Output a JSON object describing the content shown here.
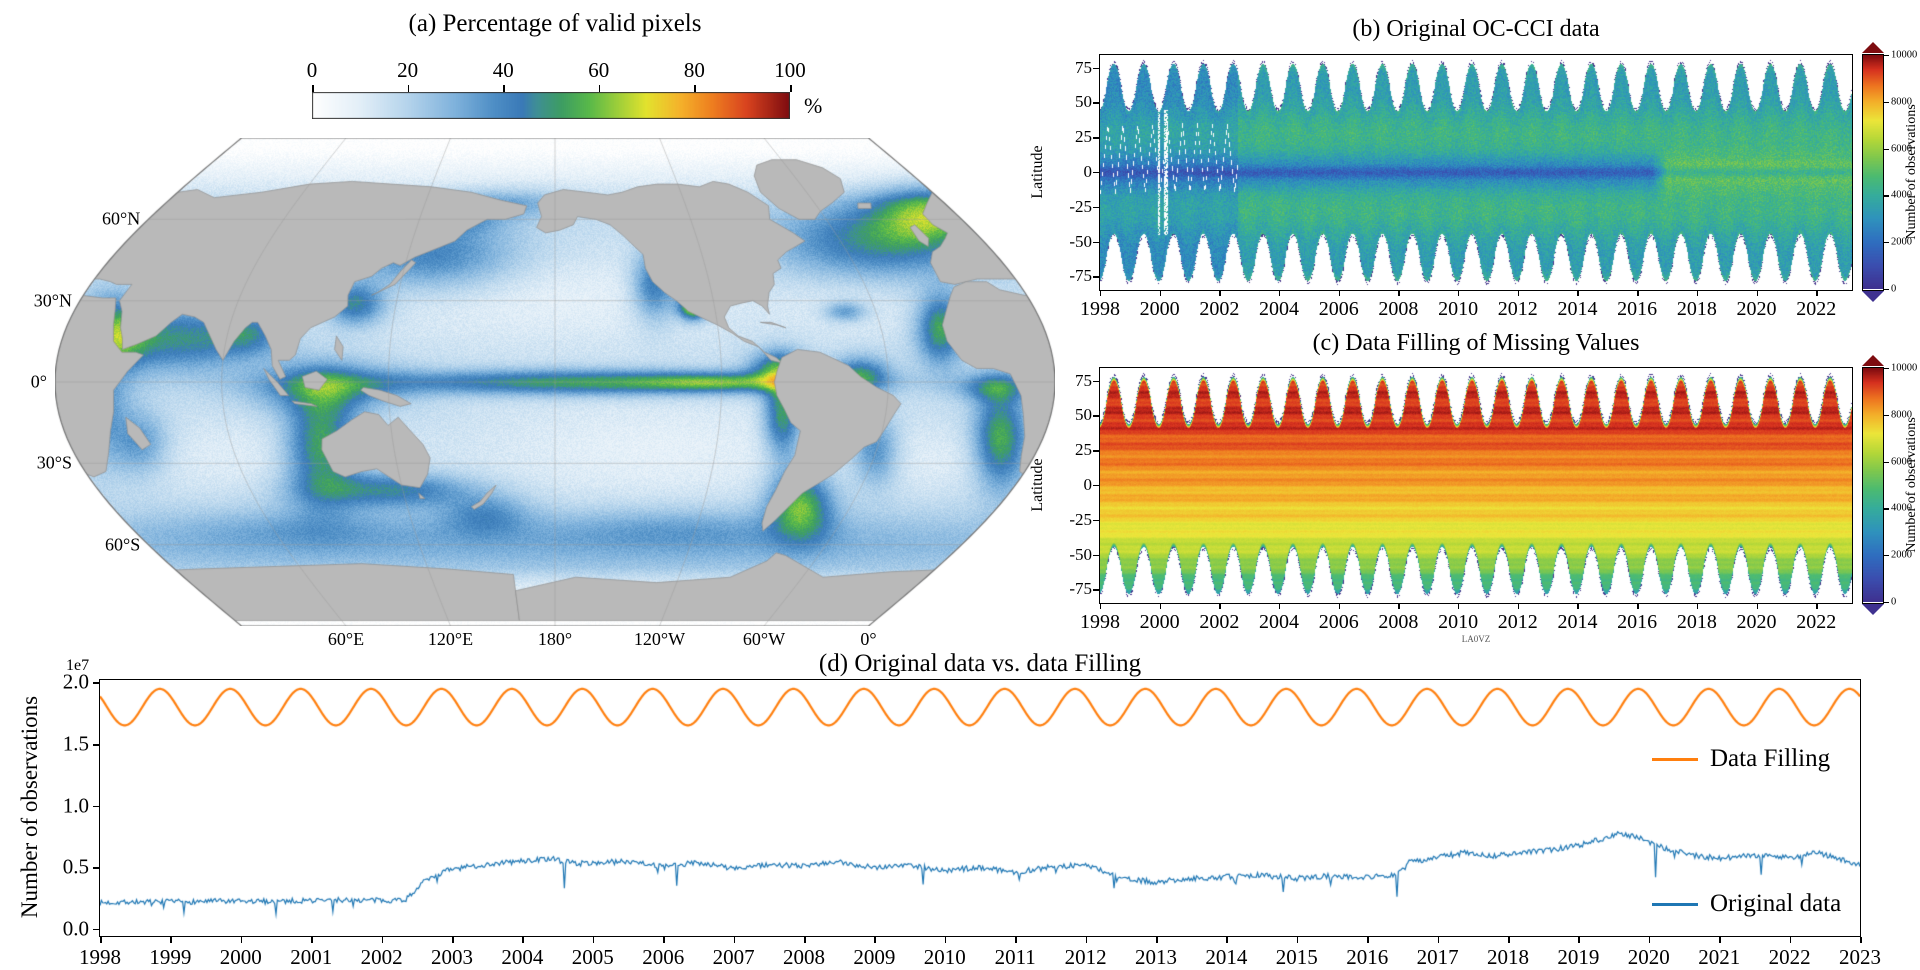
{
  "chart_data": [
    {
      "type": "heatmap",
      "panel": "a",
      "title": "(a) Percentage of valid pixels",
      "colorbar": {
        "unit": "%",
        "min": 0,
        "max": 100,
        "ticks": [
          0,
          20,
          40,
          60,
          80,
          100
        ],
        "orientation": "horizontal"
      },
      "projection": "robinson",
      "central_longitude": 200,
      "lat_labels": [
        "60°N",
        "30°N",
        "0°",
        "30°S",
        "60°S"
      ],
      "lat_values": [
        60,
        30,
        0,
        -30,
        -60
      ],
      "lon_labels": [
        "60°E",
        "120°E",
        "180°",
        "120°W",
        "60°W",
        "0°"
      ],
      "lon_center_offsets": [
        -120,
        -60,
        0,
        60,
        120,
        180
      ],
      "land_color": "#b9b9b9",
      "land_edge_color": "#8f8f8f",
      "colormap_stops": [
        [
          0,
          "#ffffff"
        ],
        [
          0.1,
          "#e3eff8"
        ],
        [
          0.2,
          "#b5d4ec"
        ],
        [
          0.3,
          "#7fb2dc"
        ],
        [
          0.38,
          "#4f8fc6"
        ],
        [
          0.44,
          "#3a7ab8"
        ],
        [
          0.47,
          "#3f8f96"
        ],
        [
          0.52,
          "#3d9d64"
        ],
        [
          0.58,
          "#59b94a"
        ],
        [
          0.64,
          "#9ecf3a"
        ],
        [
          0.7,
          "#e3e32e"
        ],
        [
          0.77,
          "#f5b32b"
        ],
        [
          0.84,
          "#ee7d1f"
        ],
        [
          0.91,
          "#d9441f"
        ],
        [
          1,
          "#7e0c10"
        ]
      ],
      "base_valid_pct": 17,
      "ocean_features": [
        {
          "name": "north-pacific-gyre",
          "fx": 0.5,
          "fy": 0.33,
          "rx": 0.16,
          "ry": 0.07,
          "dv": -8
        },
        {
          "name": "south-pacific-gyre",
          "fx": 0.6,
          "fy": 0.64,
          "rx": 0.14,
          "ry": 0.08,
          "dv": -8
        },
        {
          "name": "south-indian-gyre",
          "fx": 0.18,
          "fy": 0.65,
          "rx": 0.09,
          "ry": 0.06,
          "dv": -6
        },
        {
          "name": "south-atlantic-gyre",
          "fx": 0.88,
          "fy": 0.66,
          "rx": 0.05,
          "ry": 0.05,
          "dv": -5
        },
        {
          "name": "north-atlantic-gyre",
          "fx": 0.8,
          "fy": 0.34,
          "rx": 0.05,
          "ry": 0.05,
          "dv": -5
        },
        {
          "name": "equatorial-pacific-band",
          "fx": 0.54,
          "fy": 0.5,
          "rx": 0.155,
          "ry": 0.018,
          "dv": 38
        },
        {
          "name": "equatorial-east-taper",
          "fx": 0.665,
          "fy": 0.5,
          "rx": 0.05,
          "ry": 0.012,
          "dv": 20
        },
        {
          "name": "red-sea",
          "fx": 0.06,
          "fy": 0.4,
          "rx": 0.025,
          "ry": 0.05,
          "dv": 40
        },
        {
          "name": "arabian-sea",
          "fx": 0.127,
          "fy": 0.41,
          "rx": 0.04,
          "ry": 0.045,
          "dv": 30
        },
        {
          "name": "bay-of-bengal",
          "fx": 0.193,
          "fy": 0.4,
          "rx": 0.025,
          "ry": 0.033,
          "dv": 26
        },
        {
          "name": "west-australia",
          "fx": 0.266,
          "fy": 0.63,
          "rx": 0.025,
          "ry": 0.08,
          "dv": 40
        },
        {
          "name": "south-australia",
          "fx": 0.334,
          "fy": 0.72,
          "rx": 0.055,
          "ry": 0.025,
          "dv": 30
        },
        {
          "name": "indonesia-seas",
          "fx": 0.27,
          "fy": 0.51,
          "rx": 0.05,
          "ry": 0.035,
          "dv": 28
        },
        {
          "name": "nw-pacific-kuroshio",
          "fx": 0.375,
          "fy": 0.24,
          "rx": 0.06,
          "ry": 0.05,
          "dv": 26
        },
        {
          "name": "sea-of-okhotsk",
          "fx": 0.385,
          "fy": 0.16,
          "rx": 0.04,
          "ry": 0.025,
          "dv": 22
        },
        {
          "name": "bering-sea",
          "fx": 0.455,
          "fy": 0.13,
          "rx": 0.045,
          "ry": 0.022,
          "dv": 14
        },
        {
          "name": "china-seas",
          "fx": 0.3,
          "fy": 0.34,
          "rx": 0.02,
          "ry": 0.03,
          "dv": 32
        },
        {
          "name": "california-current",
          "fx": 0.6,
          "fy": 0.3,
          "rx": 0.016,
          "ry": 0.05,
          "dv": 32
        },
        {
          "name": "gulf-of-california",
          "fx": 0.638,
          "fy": 0.345,
          "rx": 0.01,
          "ry": 0.018,
          "dv": 60
        },
        {
          "name": "gulf-of-mexico",
          "fx": 0.79,
          "fy": 0.355,
          "rx": 0.015,
          "ry": 0.015,
          "dv": 22
        },
        {
          "name": "panama-bight",
          "fx": 0.722,
          "fy": 0.47,
          "rx": 0.02,
          "ry": 0.026,
          "dv": 30
        },
        {
          "name": "peru-upwelling",
          "fx": 0.727,
          "fy": 0.565,
          "rx": 0.013,
          "ry": 0.06,
          "dv": 38
        },
        {
          "name": "patagonia-shelf",
          "fx": 0.745,
          "fy": 0.75,
          "rx": 0.022,
          "ry": 0.05,
          "dv": 42
        },
        {
          "name": "brazil-coast",
          "fx": 0.82,
          "fy": 0.64,
          "rx": 0.016,
          "ry": 0.05,
          "dv": 24
        },
        {
          "name": "amazon-plume",
          "fx": 0.805,
          "fy": 0.485,
          "rx": 0.02,
          "ry": 0.026,
          "dv": 32
        },
        {
          "name": "north-atlantic-bloom",
          "fx": 0.82,
          "fy": 0.21,
          "rx": 0.07,
          "ry": 0.055,
          "dv": 30
        },
        {
          "name": "ne-atlantic-north-sea",
          "fx": 0.875,
          "fy": 0.15,
          "rx": 0.04,
          "ry": 0.045,
          "dv": 36
        },
        {
          "name": "nw-africa-upwelling",
          "fx": 0.885,
          "fy": 0.39,
          "rx": 0.016,
          "ry": 0.05,
          "dv": 38
        },
        {
          "name": "gulf-of-guinea",
          "fx": 0.94,
          "fy": 0.51,
          "rx": 0.025,
          "ry": 0.02,
          "dv": 26
        },
        {
          "name": "benguela",
          "fx": 0.945,
          "fy": 0.615,
          "rx": 0.018,
          "ry": 0.07,
          "dv": 40
        },
        {
          "name": "east-africa-coast",
          "fx": 0.045,
          "fy": 0.55,
          "rx": 0.02,
          "ry": 0.08,
          "dv": 20
        },
        {
          "name": "madagascar-coast",
          "fx": 0.085,
          "fy": 0.625,
          "rx": 0.02,
          "ry": 0.045,
          "dv": 20
        },
        {
          "name": "new-zealand-shelf",
          "fx": 0.43,
          "fy": 0.77,
          "rx": 0.03,
          "ry": 0.03,
          "dv": 18
        },
        {
          "name": "southern-ocean-band",
          "fx": 0.5,
          "fy": 0.83,
          "rx": 0.55,
          "ry": 0.045,
          "dv": 13
        },
        {
          "name": "subantarctic-pacific",
          "fx": 0.62,
          "fy": 0.8,
          "rx": 0.09,
          "ry": 0.03,
          "dv": 9
        },
        {
          "name": "subantarctic-indian",
          "fx": 0.25,
          "fy": 0.8,
          "rx": 0.09,
          "ry": 0.03,
          "dv": 8
        }
      ]
    },
    {
      "type": "heatmap",
      "panel": "b",
      "title": "(b) Original OC-CCI data",
      "x": {
        "min": 1998,
        "max": 2023.2,
        "ticks": [
          1998,
          2000,
          2002,
          2004,
          2006,
          2008,
          2010,
          2012,
          2014,
          2016,
          2018,
          2020,
          2022
        ]
      },
      "y": {
        "label": "Latitude",
        "min": -84,
        "max": 84,
        "ticks": [
          75,
          50,
          25,
          0,
          -25,
          -50,
          -75
        ]
      },
      "colorbar": {
        "label": "Number of observations",
        "min": 0,
        "max": 10000,
        "ticks": [
          0,
          2000,
          4000,
          6000,
          8000,
          10000
        ]
      },
      "colormap_stops": [
        [
          0,
          "#3f3190"
        ],
        [
          0.1,
          "#3b4fb0"
        ],
        [
          0.2,
          "#2f6fc0"
        ],
        [
          0.3,
          "#2f93bd"
        ],
        [
          0.4,
          "#36ad9c"
        ],
        [
          0.48,
          "#4cbb72"
        ],
        [
          0.56,
          "#7fc84e"
        ],
        [
          0.64,
          "#b6d838"
        ],
        [
          0.72,
          "#ece63a"
        ],
        [
          0.8,
          "#f4b02a"
        ],
        [
          0.87,
          "#ee7420"
        ],
        [
          0.94,
          "#d6301f"
        ],
        [
          1,
          "#7e0c10"
        ]
      ],
      "seasonal_coverage": {
        "north_edge_mean": 61,
        "south_edge_mean": -61,
        "amplitude_deg": 17,
        "peak_year_fraction": 0.45
      },
      "typical_values": {
        "background": 3000,
        "midlatitude_band": 4400,
        "equator_minimum": 1200,
        "post_2016_equatorial": 6000,
        "sparse_before": 2002.6
      }
    },
    {
      "type": "heatmap",
      "panel": "c",
      "title": "(c) Data Filling of Missing Values",
      "x": {
        "min": 1998,
        "max": 2023.2,
        "ticks": [
          1998,
          2000,
          2002,
          2004,
          2006,
          2008,
          2010,
          2012,
          2014,
          2016,
          2018,
          2020,
          2022
        ]
      },
      "y": {
        "label": "Latitude",
        "min": -84,
        "max": 84,
        "ticks": [
          75,
          50,
          25,
          0,
          -25,
          -50,
          -75
        ]
      },
      "colorbar": {
        "label": "Number of observations",
        "min": 0,
        "max": 10000,
        "ticks": [
          0,
          2000,
          4000,
          6000,
          8000,
          10000
        ]
      },
      "colormap_stops": [
        [
          0,
          "#3f3190"
        ],
        [
          0.1,
          "#3b4fb0"
        ],
        [
          0.2,
          "#2f6fc0"
        ],
        [
          0.3,
          "#2f93bd"
        ],
        [
          0.4,
          "#36ad9c"
        ],
        [
          0.48,
          "#4cbb72"
        ],
        [
          0.56,
          "#7fc84e"
        ],
        [
          0.64,
          "#b6d838"
        ],
        [
          0.72,
          "#ece63a"
        ],
        [
          0.8,
          "#f4b02a"
        ],
        [
          0.87,
          "#ee7420"
        ],
        [
          0.94,
          "#d6301f"
        ],
        [
          1,
          "#7e0c10"
        ]
      ],
      "seasonal_coverage": {
        "north_edge_mean": 61,
        "south_edge_mean": -61,
        "amplitude_deg": 17,
        "peak_year_fraction": 0.45
      },
      "latitude_profile": [
        [
          84,
          9400
        ],
        [
          45,
          9400
        ],
        [
          20,
          8600
        ],
        [
          0,
          8100
        ],
        [
          -25,
          7400
        ],
        [
          -40,
          6800
        ],
        [
          -52,
          6200
        ],
        [
          -62,
          5300
        ],
        [
          -72,
          4400
        ],
        [
          -84,
          4000
        ]
      ],
      "footnote": "LA0VZ"
    },
    {
      "type": "line",
      "panel": "d",
      "title": "(d) Original data vs. data Filling",
      "ylabel": "Number of observations",
      "y_offset_label": "1e7",
      "x": {
        "min": 1998,
        "max": 2023,
        "ticks": [
          1998,
          1999,
          2000,
          2001,
          2002,
          2003,
          2004,
          2005,
          2006,
          2007,
          2008,
          2009,
          2010,
          2011,
          2012,
          2013,
          2014,
          2015,
          2016,
          2017,
          2018,
          2019,
          2020,
          2021,
          2022,
          2023
        ]
      },
      "y": {
        "min": -0.05,
        "max": 2.02,
        "unit": "1e7",
        "ticks": [
          2.0,
          1.5,
          1.0,
          0.5,
          0.0
        ],
        "tick_labels": [
          "2.0",
          "1.5",
          "1.0",
          "0.5",
          "0.0"
        ]
      },
      "legend": {
        "location": "right",
        "frame": false
      },
      "series": [
        {
          "name": "Data Filling",
          "color": "#ff7f0e",
          "shape": "seasonal",
          "mean": 1.8,
          "amplitude": 0.148,
          "period_years": 1,
          "peak_phase": 0.85
        },
        {
          "name": "Original data",
          "color": "#1f77b4",
          "shape": "noisy-anchors",
          "noise_amplitude": 0.022,
          "anchor_points": [
            [
              1998.0,
              0.21
            ],
            [
              1998.4,
              0.22
            ],
            [
              1998.8,
              0.215
            ],
            [
              1999.2,
              0.22
            ],
            [
              1999.6,
              0.225
            ],
            [
              2000.0,
              0.22
            ],
            [
              2000.5,
              0.225
            ],
            [
              2001.0,
              0.23
            ],
            [
              2001.5,
              0.235
            ],
            [
              2002.0,
              0.23
            ],
            [
              2002.35,
              0.24
            ],
            [
              2002.6,
              0.38
            ],
            [
              2002.9,
              0.47
            ],
            [
              2003.2,
              0.5
            ],
            [
              2003.6,
              0.53
            ],
            [
              2004.0,
              0.55
            ],
            [
              2004.4,
              0.57
            ],
            [
              2004.8,
              0.53
            ],
            [
              2005.2,
              0.54
            ],
            [
              2005.6,
              0.55
            ],
            [
              2006.0,
              0.5
            ],
            [
              2006.5,
              0.54
            ],
            [
              2007.0,
              0.49
            ],
            [
              2007.5,
              0.52
            ],
            [
              2008.0,
              0.51
            ],
            [
              2008.5,
              0.54
            ],
            [
              2009.0,
              0.5
            ],
            [
              2009.5,
              0.52
            ],
            [
              2010.0,
              0.47
            ],
            [
              2010.5,
              0.5
            ],
            [
              2011.0,
              0.46
            ],
            [
              2011.5,
              0.5
            ],
            [
              2012.0,
              0.52
            ],
            [
              2012.3,
              0.46
            ],
            [
              2012.6,
              0.4
            ],
            [
              2013.0,
              0.38
            ],
            [
              2013.5,
              0.41
            ],
            [
              2014.0,
              0.42
            ],
            [
              2014.5,
              0.44
            ],
            [
              2015.0,
              0.41
            ],
            [
              2015.5,
              0.43
            ],
            [
              2016.0,
              0.42
            ],
            [
              2016.4,
              0.44
            ],
            [
              2016.6,
              0.54
            ],
            [
              2017.0,
              0.58
            ],
            [
              2017.4,
              0.62
            ],
            [
              2017.8,
              0.59
            ],
            [
              2018.2,
              0.62
            ],
            [
              2018.6,
              0.64
            ],
            [
              2019.0,
              0.68
            ],
            [
              2019.4,
              0.74
            ],
            [
              2019.6,
              0.78
            ],
            [
              2019.9,
              0.73
            ],
            [
              2020.2,
              0.66
            ],
            [
              2020.6,
              0.6
            ],
            [
              2021.0,
              0.57
            ],
            [
              2021.5,
              0.6
            ],
            [
              2022.0,
              0.58
            ],
            [
              2022.4,
              0.62
            ],
            [
              2022.8,
              0.55
            ],
            [
              2023.0,
              0.52
            ]
          ],
          "dropout_spikes": [
            [
              1999.2,
              0.13
            ],
            [
              2000.5,
              0.12
            ],
            [
              2001.3,
              0.14
            ],
            [
              2004.6,
              0.33
            ],
            [
              2006.2,
              0.35
            ],
            [
              2009.7,
              0.36
            ],
            [
              2012.4,
              0.33
            ],
            [
              2014.8,
              0.3
            ],
            [
              2016.42,
              0.26
            ],
            [
              2020.1,
              0.42
            ],
            [
              2021.6,
              0.44
            ]
          ]
        }
      ]
    }
  ]
}
